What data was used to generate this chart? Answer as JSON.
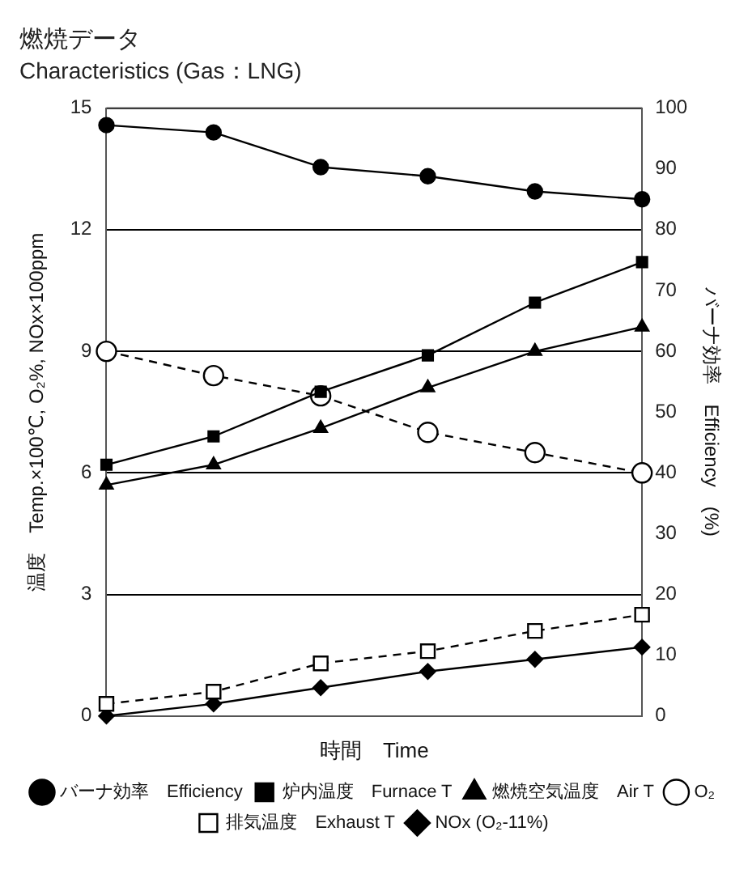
{
  "chart_data": {
    "type": "line",
    "title": "燃焼データ",
    "subtitle": "Characteristics (Gas：LNG)",
    "xlabel": "時間　Time",
    "ylabel": "温度　Temp.×100℃, O₂%, NOx×100ppm",
    "y2label": "バーナ効率　Efficiency　(%)",
    "categories": [
      null,
      null,
      null,
      null,
      null,
      null
    ],
    "ylim": [
      0,
      15
    ],
    "yticks": [
      0,
      3,
      6,
      9,
      12,
      15
    ],
    "y2lim": [
      0,
      100
    ],
    "y2ticks": [
      0,
      10,
      20,
      30,
      40,
      50,
      60,
      70,
      80,
      90,
      100
    ],
    "grid": "y",
    "legend": "bottom",
    "tick_labels": "y",
    "series": [
      {
        "name": "バーナ効率　Efficiency",
        "color": "#000000",
        "axis": "y2",
        "marker": "circle",
        "line_style": "solid",
        "values": [
          97.2,
          96,
          90.3,
          88.8,
          86.3,
          85
        ]
      },
      {
        "name": "炉内温度　Furnace T",
        "color": "#000000",
        "marker": "square",
        "line_style": "solid",
        "values": [
          6.2,
          6.9,
          8.0,
          8.9,
          10.2,
          11.2
        ]
      },
      {
        "name": "燃焼空気温度　Air T",
        "color": "#000000",
        "marker": "triangle",
        "line_style": "solid",
        "values": [
          5.7,
          6.2,
          7.1,
          8.1,
          9.0,
          9.6
        ]
      },
      {
        "name": "O₂",
        "color": "#000000",
        "marker": "circle",
        "line_style": "dashed",
        "values": [
          9.0,
          8.4,
          7.9,
          7.0,
          6.5,
          6.0
        ]
      },
      {
        "name": "排気温度　Exhaust T",
        "color": "#000000",
        "marker": "square",
        "line_style": "dashed",
        "values": [
          0.3,
          0.6,
          1.3,
          1.6,
          2.1,
          2.5
        ]
      },
      {
        "name": "NOx (O₂-11%)",
        "color": "#000000",
        "marker": "diamond",
        "line_style": "solid",
        "values": [
          0,
          0.3,
          0.7,
          1.1,
          1.4,
          1.7
        ]
      }
    ]
  }
}
